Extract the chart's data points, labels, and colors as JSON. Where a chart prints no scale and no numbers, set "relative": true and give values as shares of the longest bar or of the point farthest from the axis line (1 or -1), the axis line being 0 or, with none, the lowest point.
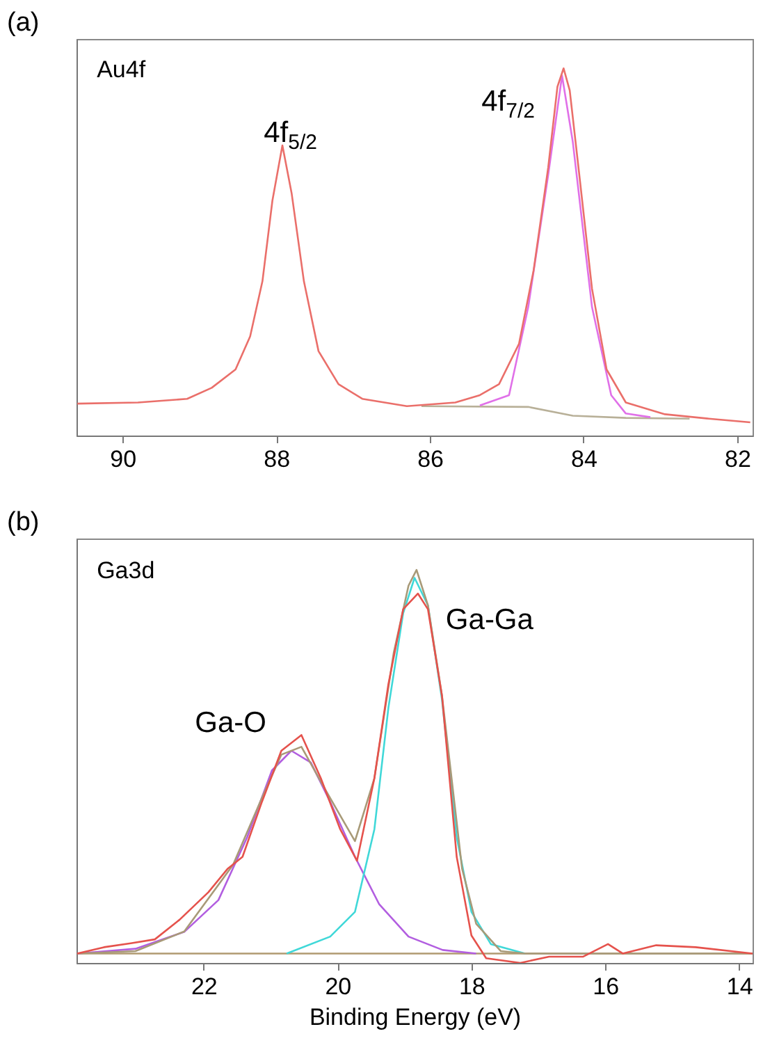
{
  "chart_data": [
    {
      "type": "line",
      "title": "(a)",
      "relative": true,
      "grid": false,
      "tick_labels": "x",
      "xlim": [
        90.6,
        81.8
      ],
      "xticks": [
        90,
        88,
        86,
        84,
        82
      ],
      "annotations": [
        "Au4f",
        "4f$_{5/2}$",
        "4f$_{7/2}$"
      ],
      "series": [
        {
          "color": "#b8b098",
          "x": [
            86.11,
            84.72,
            84.14,
            83.45,
            82.62
          ],
          "values": [
            0.08,
            0.078,
            0.054,
            0.048,
            0.046
          ]
        },
        {
          "color": "#e070e8",
          "x": [
            85.35,
            84.97,
            84.72,
            84.46,
            84.28,
            84.14,
            83.89,
            83.64,
            83.45,
            83.13
          ],
          "values": [
            0.082,
            0.11,
            0.35,
            0.71,
            0.98,
            0.8,
            0.35,
            0.11,
            0.06,
            0.05
          ]
        },
        {
          "color": "#ea6f6a",
          "x": [
            90.59,
            89.8,
            89.16,
            88.84,
            88.53,
            88.34,
            88.18,
            88.05,
            87.92,
            87.8,
            87.64,
            87.45,
            87.19,
            86.88,
            86.3,
            85.67,
            85.35,
            85.1,
            84.84,
            84.65,
            84.46,
            84.34,
            84.26,
            84.18,
            84.05,
            83.89,
            83.7,
            83.45,
            82.94,
            82.37,
            81.83
          ],
          "values": [
            0.087,
            0.09,
            0.1,
            0.13,
            0.18,
            0.27,
            0.42,
            0.64,
            0.79,
            0.66,
            0.42,
            0.23,
            0.14,
            0.1,
            0.08,
            0.09,
            0.11,
            0.14,
            0.25,
            0.45,
            0.73,
            0.95,
            1.0,
            0.94,
            0.7,
            0.4,
            0.18,
            0.09,
            0.058,
            0.046,
            0.036
          ]
        }
      ]
    },
    {
      "type": "line",
      "title": "(b)",
      "relative": true,
      "grid": false,
      "tick_labels": "x",
      "xlabel": "Binding Energy (eV)",
      "xlim": [
        23.9,
        13.8
      ],
      "xticks": [
        22,
        20,
        18,
        16,
        14
      ],
      "annotations": [
        "Ga3d",
        "Ga-O",
        "Ga-Ga"
      ],
      "series": [
        {
          "color": "#b09a70",
          "x": [
            23.89,
            13.8
          ],
          "values": [
            0.024,
            0.024
          ]
        },
        {
          "color": "#b25ee0",
          "x": [
            23.89,
            23.02,
            22.29,
            21.78,
            21.35,
            20.98,
            20.69,
            20.4,
            20.11,
            19.74,
            19.38,
            18.94,
            18.43,
            17.93
          ],
          "values": [
            0.024,
            0.036,
            0.079,
            0.16,
            0.32,
            0.49,
            0.54,
            0.51,
            0.41,
            0.27,
            0.15,
            0.067,
            0.033,
            0.024
          ]
        },
        {
          "color": "#40d8d8",
          "x": [
            20.76,
            20.11,
            19.74,
            19.45,
            19.24,
            19.02,
            18.85,
            18.65,
            18.44,
            18.22,
            18.0,
            17.71,
            17.2
          ],
          "values": [
            0.024,
            0.067,
            0.13,
            0.34,
            0.65,
            0.89,
            0.98,
            0.91,
            0.67,
            0.32,
            0.13,
            0.048,
            0.024
          ]
        },
        {
          "color": "#a89a78",
          "x": [
            23.89,
            23.02,
            22.29,
            21.56,
            21.13,
            20.84,
            20.54,
            20.18,
            19.74,
            19.45,
            19.16,
            18.94,
            18.82,
            18.65,
            18.44,
            18.14,
            17.93,
            17.56,
            17.2,
            13.8
          ],
          "values": [
            0.024,
            0.03,
            0.08,
            0.25,
            0.42,
            0.53,
            0.55,
            0.44,
            0.31,
            0.47,
            0.79,
            0.96,
            1.0,
            0.91,
            0.68,
            0.24,
            0.1,
            0.03,
            0.024,
            0.024
          ]
        },
        {
          "color": "#e5524c",
          "x": [
            23.89,
            23.49,
            23.09,
            22.73,
            22.36,
            21.93,
            21.64,
            21.42,
            21.13,
            20.84,
            20.54,
            20.25,
            19.96,
            19.71,
            19.45,
            19.24,
            19.02,
            18.8,
            18.65,
            18.44,
            18.22,
            18.0,
            17.78,
            17.27,
            16.84,
            16.33,
            15.96,
            15.74,
            15.24,
            14.65,
            13.8
          ],
          "values": [
            0.024,
            0.04,
            0.05,
            0.06,
            0.11,
            0.18,
            0.24,
            0.27,
            0.41,
            0.54,
            0.58,
            0.47,
            0.34,
            0.26,
            0.47,
            0.71,
            0.9,
            0.94,
            0.9,
            0.68,
            0.27,
            0.07,
            0.012,
            0,
            0.016,
            0.016,
            0.048,
            0.024,
            0.045,
            0.04,
            0.024
          ]
        }
      ]
    }
  ]
}
